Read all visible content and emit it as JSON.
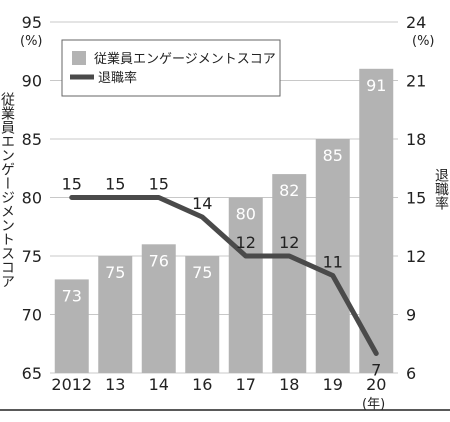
{
  "chart_data": {
    "type": "bar",
    "categories": [
      "2012",
      "13",
      "14",
      "16",
      "17",
      "18",
      "19",
      "20"
    ],
    "x_unit": "(年)",
    "series": [
      {
        "name": "従業員エンゲージメントスコア",
        "type": "bar",
        "axis": "left",
        "values": [
          73,
          75,
          76,
          75,
          80,
          82,
          85,
          91
        ],
        "color": "#b3b3b3",
        "label_color": "#ffffff"
      },
      {
        "name": "退職率",
        "type": "line",
        "axis": "right",
        "values": [
          15,
          15,
          15,
          14,
          12,
          12,
          11,
          7
        ],
        "color": "#4a4a4a"
      }
    ],
    "y_left": {
      "label": "従業員エンゲージメントスコア",
      "unit": "(%)",
      "min": 65,
      "max": 95,
      "ticks": [
        65,
        70,
        75,
        80,
        85,
        90,
        95
      ]
    },
    "y_right": {
      "label": "退職率",
      "unit": "(%)",
      "min": 6,
      "max": 24,
      "ticks": [
        6,
        9,
        12,
        15,
        18,
        21,
        24
      ]
    },
    "grid": "horizontal",
    "legend": "top-left"
  }
}
